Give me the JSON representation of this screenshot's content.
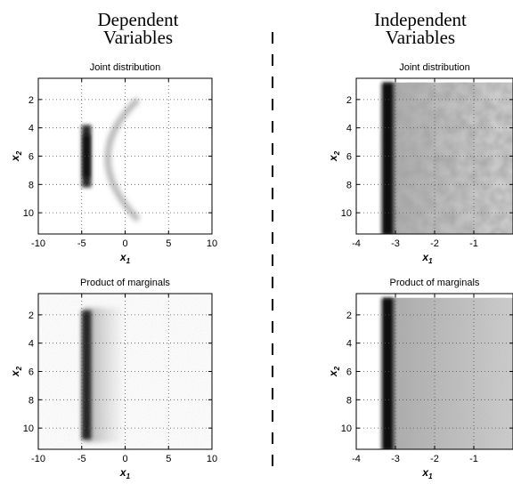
{
  "sections": {
    "dependent": {
      "line1": "Dependent",
      "line2": "Variables"
    },
    "independent": {
      "line1": "Independent",
      "line2": "Variables"
    }
  },
  "chart_data": [
    {
      "type": "heatmap",
      "id": "dep-joint",
      "title": "Joint distribution",
      "xlabel_base": "x",
      "xlabel_sub": "1",
      "ylabel_base": "x",
      "ylabel_sub": "2",
      "xlim": [
        -10,
        10
      ],
      "ylim": [
        11.5,
        0.5
      ],
      "y_reversed": true,
      "xticks": [
        -10,
        -5,
        0,
        5,
        10
      ],
      "xtick_labels": [
        "-10",
        "-5",
        "0",
        "5",
        "10"
      ],
      "yticks": [
        2,
        4,
        6,
        8,
        10
      ],
      "ytick_labels": [
        "2",
        "4",
        "6",
        "8",
        "10"
      ],
      "grid": true,
      "density": "crescent: strong vertical band near x1=-4.5 for x2 4-8, arms curving to x1 about 1.5 at x2=2 and x2=10.5"
    },
    {
      "type": "heatmap",
      "id": "dep-marg",
      "title": "Product of marginals",
      "xlabel_base": "x",
      "xlabel_sub": "1",
      "ylabel_base": "x",
      "ylabel_sub": "2",
      "xlim": [
        -10,
        10
      ],
      "ylim": [
        11.5,
        0.5
      ],
      "y_reversed": true,
      "xticks": [
        -10,
        -5,
        0,
        5,
        10
      ],
      "xtick_labels": [
        "-10",
        "-5",
        "0",
        "5",
        "10"
      ],
      "yticks": [
        2,
        4,
        6,
        8,
        10
      ],
      "ytick_labels": [
        "2",
        "4",
        "6",
        "8",
        "10"
      ],
      "grid": true,
      "density": "dark vertical band at x1=-4.5 spanning x2 1.5-11, fading to the right until x1 about 0"
    },
    {
      "type": "heatmap",
      "id": "ind-joint",
      "title": "Joint distribution",
      "xlabel_base": "x",
      "xlabel_sub": "1",
      "ylabel_base": "x",
      "ylabel_sub": "2",
      "xlim": [
        -4,
        0
      ],
      "ylim": [
        11.5,
        0.5
      ],
      "y_reversed": true,
      "xticks": [
        -4,
        -3,
        -2,
        -1
      ],
      "xtick_labels": [
        "-4",
        "-3",
        "-2",
        "-1"
      ],
      "yticks": [
        2,
        4,
        6,
        8,
        10
      ],
      "ytick_labels": [
        "2",
        "4",
        "6",
        "8",
        "10"
      ],
      "grid": true,
      "density": "dark vertical band at x1=-3.2, medium blotchy uniform gray from x1 -3.2 to 0"
    },
    {
      "type": "heatmap",
      "id": "ind-marg",
      "title": "Product of marginals",
      "xlabel_base": "x",
      "xlabel_sub": "1",
      "ylabel_base": "x",
      "ylabel_sub": "2",
      "xlim": [
        -4,
        0
      ],
      "ylim": [
        11.5,
        0.5
      ],
      "y_reversed": true,
      "xticks": [
        -4,
        -3,
        -2,
        -1
      ],
      "xtick_labels": [
        "-4",
        "-3",
        "-2",
        "-1"
      ],
      "yticks": [
        2,
        4,
        6,
        8,
        10
      ],
      "ytick_labels": [
        "2",
        "4",
        "6",
        "8",
        "10"
      ],
      "grid": true,
      "density": "dark vertical band at x1=-3.2, smooth uniform gray from x1 -3.2 to 0"
    }
  ],
  "colors": {
    "ink": "#000000",
    "density_dark": "#1a1a1a",
    "grid": "#555555"
  }
}
